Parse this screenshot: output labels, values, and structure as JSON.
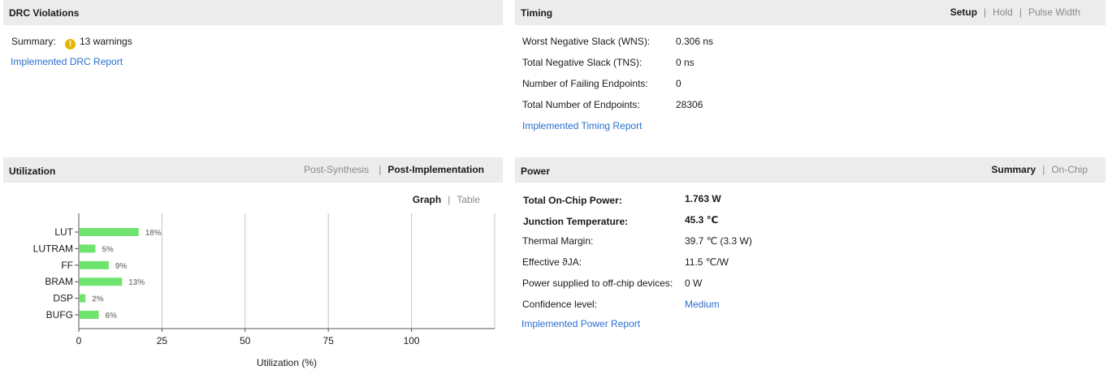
{
  "drc": {
    "title": "DRC Violations",
    "summary_label": "Summary:",
    "summary_value": "13 warnings",
    "warning_icon": "!",
    "report_link": "Implemented DRC Report"
  },
  "timing": {
    "title": "Timing",
    "tabs": [
      "Setup",
      "Hold",
      "Pulse Width"
    ],
    "active_tab": "Setup",
    "rows": [
      {
        "label": "Worst Negative Slack (WNS):",
        "value": "0.306 ns"
      },
      {
        "label": "Total Negative Slack (TNS):",
        "value": "0 ns"
      },
      {
        "label": "Number of Failing Endpoints:",
        "value": "0"
      },
      {
        "label": "Total Number of Endpoints:",
        "value": "28306"
      }
    ],
    "report_link": "Implemented Timing Report"
  },
  "utilization": {
    "title": "Utilization",
    "tabs": [
      "Post-Synthesis",
      "Post-Implementation"
    ],
    "active_tab": "Post-Implementation",
    "view_tabs": [
      "Graph",
      "Table"
    ],
    "active_view": "Graph"
  },
  "power": {
    "title": "Power",
    "tabs": [
      "Summary",
      "On-Chip"
    ],
    "active_tab": "Summary",
    "rows": [
      {
        "label": "Total On-Chip Power:",
        "value": "1.763 W"
      },
      {
        "label": "Junction Temperature:",
        "value": "45.3 ℃"
      },
      {
        "label": "Thermal Margin:",
        "value": "39.7 ℃ (3.3 W)"
      },
      {
        "label": "Effective ϑJA:",
        "value": "11.5 ℃/W"
      },
      {
        "label": "Power supplied to off-chip devices:",
        "value": "0 W"
      },
      {
        "label": "Confidence level:",
        "value": "Medium"
      }
    ],
    "report_link": "Implemented Power Report"
  },
  "chart_data": {
    "type": "bar",
    "orientation": "horizontal",
    "categories": [
      "LUT",
      "LUTRAM",
      "FF",
      "BRAM",
      "DSP",
      "BUFG"
    ],
    "values": [
      18,
      5,
      9,
      13,
      2,
      6
    ],
    "value_labels": [
      "18%",
      "5%",
      "9%",
      "13%",
      "2%",
      "6%"
    ],
    "xlabel": "Utilization (%)",
    "xticks": [
      0,
      25,
      50,
      75,
      100
    ],
    "xlim": [
      0,
      125
    ],
    "grid": true,
    "bar_color": "#6ee46e"
  }
}
